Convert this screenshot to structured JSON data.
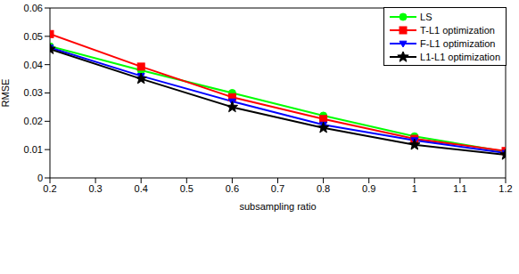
{
  "chart_data": {
    "type": "line",
    "x_label": "subsampling ratio",
    "y_label": "RMSE",
    "x": [
      0.2,
      0.4,
      0.6,
      0.8,
      1.0,
      1.2
    ],
    "series": [
      {
        "name": "LS",
        "color": "#00ff00",
        "marker": "circle",
        "values": [
          0.0465,
          0.038,
          0.03,
          0.022,
          0.0147,
          0.0093
        ]
      },
      {
        "name": "T-L1 optimization",
        "color": "#ff0000",
        "marker": "square",
        "values": [
          0.0508,
          0.0393,
          0.0285,
          0.0208,
          0.0138,
          0.0095
        ]
      },
      {
        "name": "F-L1 optimization",
        "color": "#0000ff",
        "marker": "triangle-down",
        "values": [
          0.046,
          0.036,
          0.027,
          0.0188,
          0.0133,
          0.0088
        ]
      },
      {
        "name": "L1-L1 optimization",
        "color": "#000000",
        "marker": "star",
        "values": [
          0.0455,
          0.035,
          0.025,
          0.0177,
          0.0117,
          0.0082
        ]
      }
    ],
    "xlim": [
      0.2,
      1.2
    ],
    "xticks": [
      0.2,
      0.3,
      0.4,
      0.5,
      0.6,
      0.7,
      0.8,
      0.9,
      1,
      1.1,
      1.2
    ],
    "ylim": [
      0,
      0.06
    ],
    "yticks": [
      0,
      0.01,
      0.02,
      0.03,
      0.04,
      0.05,
      0.06
    ],
    "grid": false,
    "legend": "top-right"
  }
}
